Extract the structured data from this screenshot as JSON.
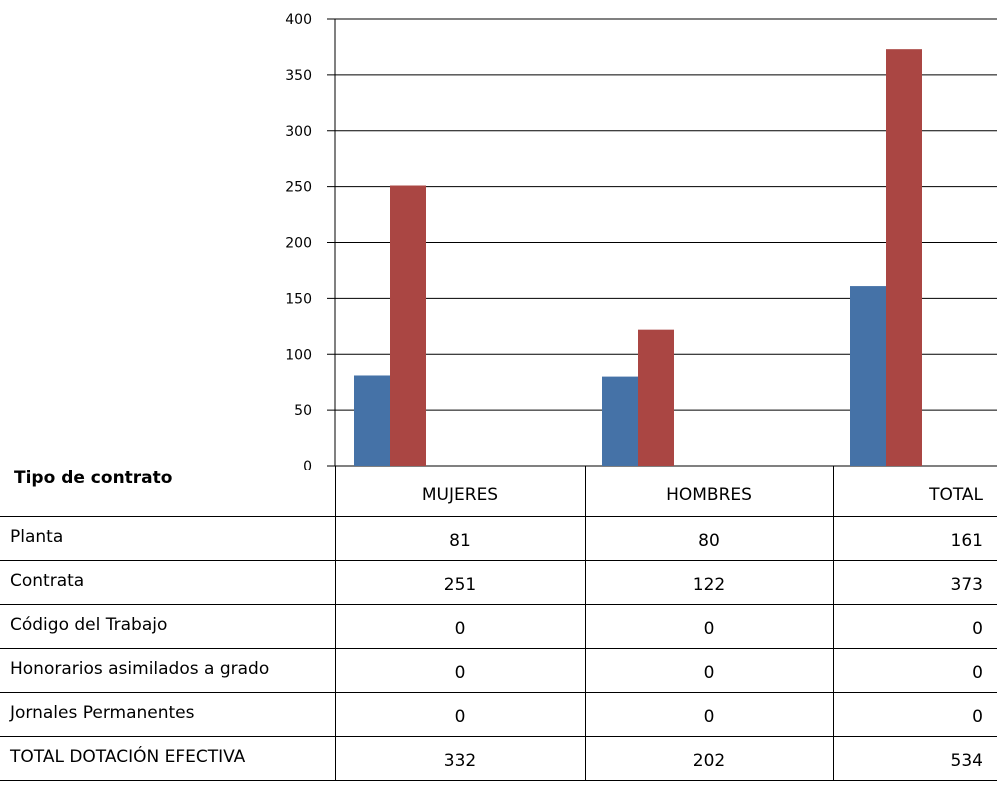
{
  "chart_data": {
    "type": "bar",
    "categories": [
      "MUJERES",
      "HOMBRES",
      "TOTAL"
    ],
    "series": [
      {
        "values": [
          81,
          80,
          161
        ],
        "color": "#4572A7"
      },
      {
        "values": [
          251,
          122,
          373
        ],
        "color": "#AA4643"
      }
    ],
    "ylim": [
      0,
      400
    ],
    "yticks": [
      0,
      50,
      100,
      150,
      200,
      250,
      300,
      350,
      400
    ],
    "grid": true
  },
  "table": {
    "header_label": "Tipo de contrato",
    "columns": [
      "MUJERES",
      "HOMBRES",
      "TOTAL"
    ],
    "rows": [
      {
        "label": "Planta",
        "values": [
          "81",
          "80",
          "161"
        ]
      },
      {
        "label": "Contrata",
        "values": [
          "251",
          "122",
          "373"
        ]
      },
      {
        "label": "Código del Trabajo",
        "values": [
          "0",
          "0",
          "0"
        ]
      },
      {
        "label": "Honorarios asimilados a grado",
        "values": [
          "0",
          "0",
          "0"
        ]
      },
      {
        "label": "Jornales Permanentes",
        "values": [
          "0",
          "0",
          "0"
        ]
      },
      {
        "label": "TOTAL DOTACIÓN EFECTIVA",
        "values": [
          "332",
          "202",
          "534"
        ]
      }
    ]
  }
}
